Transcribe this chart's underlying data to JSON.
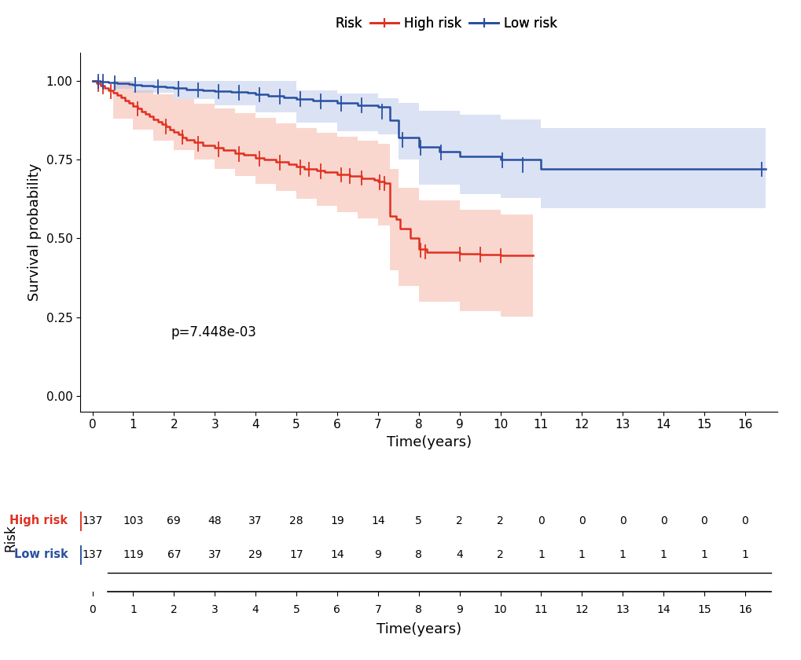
{
  "xlabel": "Time(years)",
  "ylabel": "Survival probability",
  "pvalue": "p=7.448e-03",
  "xlim": [
    -0.3,
    16.8
  ],
  "ylim": [
    -0.05,
    1.09
  ],
  "xticks": [
    0,
    1,
    2,
    3,
    4,
    5,
    6,
    7,
    8,
    9,
    10,
    11,
    12,
    13,
    14,
    15,
    16
  ],
  "yticks": [
    0.0,
    0.25,
    0.5,
    0.75,
    1.0
  ],
  "high_risk_color": "#E03020",
  "low_risk_color": "#2850A0",
  "high_risk_fill": "#F5B0A0",
  "low_risk_fill": "#B0C0E8",
  "high_t": [
    0,
    0.1,
    0.2,
    0.3,
    0.4,
    0.5,
    0.6,
    0.7,
    0.8,
    0.9,
    1.0,
    1.1,
    1.2,
    1.3,
    1.4,
    1.5,
    1.6,
    1.7,
    1.8,
    1.9,
    2.0,
    2.1,
    2.2,
    2.3,
    2.5,
    2.7,
    3.0,
    3.2,
    3.5,
    3.7,
    4.0,
    4.2,
    4.5,
    4.8,
    5.0,
    5.2,
    5.5,
    5.7,
    6.0,
    6.3,
    6.6,
    6.9,
    7.0,
    7.15,
    7.3,
    7.45,
    7.55,
    7.8,
    8.0,
    8.2,
    9.0,
    9.5,
    10.0,
    10.8
  ],
  "high_s": [
    1.0,
    0.993,
    0.985,
    0.978,
    0.971,
    0.963,
    0.955,
    0.947,
    0.939,
    0.93,
    0.921,
    0.912,
    0.903,
    0.895,
    0.887,
    0.879,
    0.871,
    0.863,
    0.855,
    0.847,
    0.838,
    0.83,
    0.822,
    0.814,
    0.805,
    0.797,
    0.788,
    0.78,
    0.772,
    0.765,
    0.757,
    0.75,
    0.743,
    0.736,
    0.729,
    0.722,
    0.716,
    0.71,
    0.704,
    0.698,
    0.692,
    0.686,
    0.68,
    0.675,
    0.57,
    0.56,
    0.53,
    0.5,
    0.465,
    0.455,
    0.45,
    0.448,
    0.445,
    0.445
  ],
  "low_t": [
    0,
    0.1,
    0.2,
    0.4,
    0.6,
    0.9,
    1.0,
    1.2,
    1.5,
    1.8,
    2.0,
    2.3,
    2.7,
    3.0,
    3.4,
    3.8,
    4.0,
    4.3,
    4.7,
    5.0,
    5.4,
    6.0,
    6.5,
    7.0,
    7.3,
    7.5,
    8.0,
    8.5,
    9.0,
    10.0,
    11.0,
    16.5
  ],
  "low_s": [
    1.0,
    1.0,
    0.998,
    0.996,
    0.994,
    0.991,
    0.988,
    0.986,
    0.983,
    0.98,
    0.977,
    0.974,
    0.971,
    0.968,
    0.965,
    0.962,
    0.958,
    0.954,
    0.949,
    0.944,
    0.938,
    0.93,
    0.924,
    0.918,
    0.875,
    0.82,
    0.79,
    0.775,
    0.762,
    0.75,
    0.72,
    0.72
  ],
  "high_ci_upper_t": [
    0,
    0.5,
    1.0,
    1.5,
    2.0,
    2.5,
    3.0,
    3.5,
    4.0,
    4.5,
    5.0,
    5.5,
    6.0,
    6.5,
    7.0,
    7.3,
    7.5,
    8.0,
    9.0,
    10.0,
    10.8
  ],
  "high_ci_upper_s": [
    1.0,
    1.0,
    0.97,
    0.958,
    0.942,
    0.928,
    0.912,
    0.898,
    0.882,
    0.867,
    0.852,
    0.836,
    0.824,
    0.812,
    0.8,
    0.72,
    0.66,
    0.62,
    0.59,
    0.575,
    0.575
  ],
  "high_ci_lower_t": [
    0,
    0.5,
    1.0,
    1.5,
    2.0,
    2.5,
    3.0,
    3.5,
    4.0,
    4.5,
    5.0,
    5.5,
    6.0,
    6.5,
    7.0,
    7.3,
    7.5,
    8.0,
    9.0,
    10.0,
    10.8
  ],
  "high_ci_lower_s": [
    1.0,
    0.88,
    0.846,
    0.812,
    0.78,
    0.75,
    0.722,
    0.698,
    0.674,
    0.65,
    0.626,
    0.604,
    0.584,
    0.564,
    0.542,
    0.4,
    0.35,
    0.3,
    0.268,
    0.252,
    0.252
  ],
  "low_ci_upper_t": [
    0,
    0.5,
    1.0,
    2.0,
    3.0,
    4.0,
    5.0,
    6.0,
    7.0,
    7.5,
    8.0,
    9.0,
    10.0,
    11.0,
    16.5
  ],
  "low_ci_upper_s": [
    1.0,
    1.0,
    1.0,
    1.0,
    1.0,
    1.0,
    0.97,
    0.96,
    0.945,
    0.93,
    0.905,
    0.892,
    0.878,
    0.85,
    0.885
  ],
  "low_ci_lower_t": [
    0,
    0.5,
    1.0,
    2.0,
    3.0,
    4.0,
    5.0,
    6.0,
    7.0,
    7.5,
    8.0,
    9.0,
    10.0,
    11.0,
    16.5
  ],
  "low_ci_lower_s": [
    1.0,
    0.975,
    0.962,
    0.942,
    0.922,
    0.9,
    0.868,
    0.842,
    0.832,
    0.75,
    0.672,
    0.642,
    0.628,
    0.595,
    0.568
  ],
  "high_censor_t": [
    0.15,
    0.25,
    0.45,
    1.1,
    1.8,
    2.2,
    2.6,
    3.1,
    3.6,
    4.1,
    4.6,
    5.1,
    5.3,
    5.6,
    6.1,
    6.3,
    6.6,
    7.05,
    7.15,
    8.05,
    8.15,
    9.0,
    9.5,
    10.0
  ],
  "low_censor_t": [
    0.15,
    0.25,
    0.55,
    1.05,
    1.6,
    2.1,
    2.6,
    3.1,
    3.6,
    4.1,
    4.6,
    5.1,
    5.6,
    6.1,
    6.6,
    7.1,
    7.6,
    8.05,
    8.55,
    10.05,
    10.55,
    16.4
  ],
  "risk_table_high": [
    "137",
    "103",
    "69",
    "48",
    "37",
    "28",
    "19",
    "14",
    "5",
    "2",
    "2",
    "0",
    "0",
    "0",
    "0",
    "0",
    "0"
  ],
  "risk_table_low": [
    "137",
    "119",
    "67",
    "37",
    "29",
    "17",
    "14",
    "9",
    "8",
    "4",
    "2",
    "1",
    "1",
    "1",
    "1",
    "1",
    "1"
  ],
  "risk_table_times": [
    0,
    1,
    2,
    3,
    4,
    5,
    6,
    7,
    8,
    9,
    10,
    11,
    12,
    13,
    14,
    15,
    16
  ]
}
